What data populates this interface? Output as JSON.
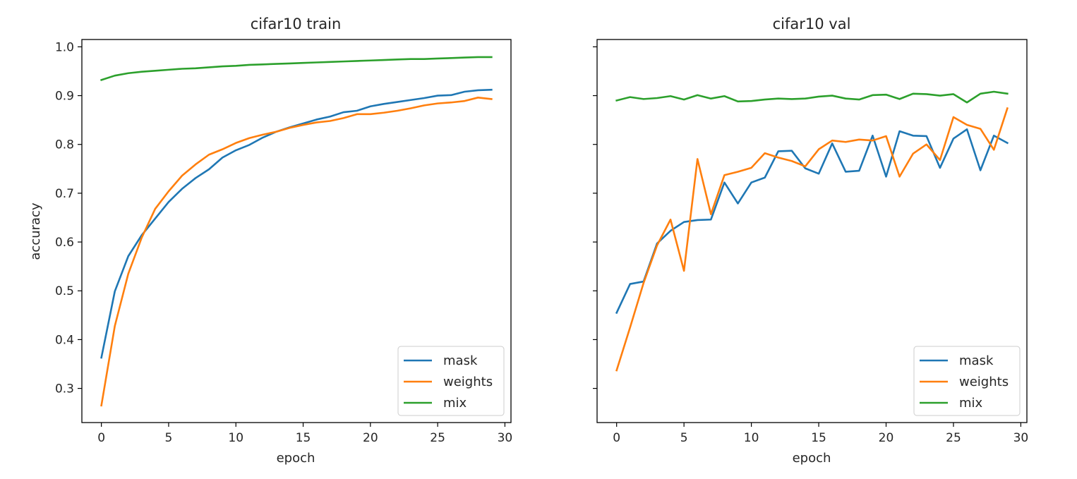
{
  "chart_data": [
    {
      "type": "line",
      "title": "cifar10 train",
      "xlabel": "epoch",
      "ylabel": "accuracy",
      "xlim": [
        -1.45,
        30.45
      ],
      "ylim": [
        0.23,
        1.015
      ],
      "xticks": [
        0,
        5,
        10,
        15,
        20,
        25,
        30
      ],
      "yticks": [
        0.3,
        0.4,
        0.5,
        0.6,
        0.7,
        0.8,
        0.9,
        1.0
      ],
      "ytick_labels": [
        "0.3",
        "0.4",
        "0.5",
        "0.6",
        "0.7",
        "0.8",
        "0.9",
        "1.0"
      ],
      "show_ytick_labels": true,
      "grid": false,
      "legend_position": "lower-right",
      "x": [
        0,
        1,
        2,
        3,
        4,
        5,
        6,
        7,
        8,
        9,
        10,
        11,
        12,
        13,
        14,
        15,
        16,
        17,
        18,
        19,
        20,
        21,
        22,
        23,
        24,
        25,
        26,
        27,
        28,
        29
      ],
      "series": [
        {
          "name": "mask",
          "color": "#1f77b4",
          "values": [
            0.363,
            0.499,
            0.571,
            0.614,
            0.648,
            0.682,
            0.709,
            0.731,
            0.749,
            0.773,
            0.788,
            0.799,
            0.814,
            0.826,
            0.835,
            0.843,
            0.851,
            0.857,
            0.866,
            0.869,
            0.878,
            0.883,
            0.887,
            0.891,
            0.895,
            0.9,
            0.901,
            0.908,
            0.911,
            0.912
          ]
        },
        {
          "name": "weights",
          "color": "#ff7f0e",
          "values": [
            0.265,
            0.428,
            0.535,
            0.609,
            0.668,
            0.704,
            0.736,
            0.759,
            0.779,
            0.79,
            0.803,
            0.813,
            0.82,
            0.826,
            0.834,
            0.84,
            0.845,
            0.848,
            0.854,
            0.862,
            0.862,
            0.865,
            0.869,
            0.874,
            0.88,
            0.884,
            0.886,
            0.889,
            0.896,
            0.893
          ]
        },
        {
          "name": "mix",
          "color": "#2ca02c",
          "values": [
            0.932,
            0.941,
            0.946,
            0.949,
            0.951,
            0.953,
            0.955,
            0.956,
            0.958,
            0.96,
            0.961,
            0.963,
            0.964,
            0.965,
            0.966,
            0.967,
            0.968,
            0.969,
            0.97,
            0.971,
            0.972,
            0.973,
            0.974,
            0.975,
            0.975,
            0.976,
            0.977,
            0.978,
            0.979,
            0.979
          ]
        }
      ]
    },
    {
      "type": "line",
      "title": "cifar10 val",
      "xlabel": "epoch",
      "ylabel": "",
      "xlim": [
        -1.45,
        30.45
      ],
      "ylim": [
        0.23,
        1.015
      ],
      "xticks": [
        0,
        5,
        10,
        15,
        20,
        25,
        30
      ],
      "yticks": [
        0.3,
        0.4,
        0.5,
        0.6,
        0.7,
        0.8,
        0.9,
        1.0
      ],
      "ytick_labels": [],
      "show_ytick_labels": false,
      "grid": false,
      "legend_position": "lower-right",
      "x": [
        0,
        1,
        2,
        3,
        4,
        5,
        6,
        7,
        8,
        9,
        10,
        11,
        12,
        13,
        14,
        15,
        16,
        17,
        18,
        19,
        20,
        21,
        22,
        23,
        24,
        25,
        26,
        27,
        28,
        29
      ],
      "series": [
        {
          "name": "mask",
          "color": "#1f77b4",
          "values": [
            0.455,
            0.514,
            0.519,
            0.597,
            0.623,
            0.641,
            0.645,
            0.646,
            0.722,
            0.679,
            0.722,
            0.732,
            0.786,
            0.787,
            0.751,
            0.74,
            0.802,
            0.744,
            0.746,
            0.818,
            0.734,
            0.827,
            0.818,
            0.817,
            0.752,
            0.812,
            0.831,
            0.747,
            0.818,
            0.803
          ]
        },
        {
          "name": "weights",
          "color": "#ff7f0e",
          "values": [
            0.337,
            0.425,
            0.516,
            0.593,
            0.646,
            0.541,
            0.77,
            0.657,
            0.737,
            0.744,
            0.752,
            0.782,
            0.773,
            0.766,
            0.755,
            0.79,
            0.808,
            0.805,
            0.81,
            0.808,
            0.817,
            0.734,
            0.781,
            0.8,
            0.768,
            0.856,
            0.84,
            0.832,
            0.789,
            0.874
          ]
        },
        {
          "name": "mix",
          "color": "#2ca02c",
          "values": [
            0.89,
            0.897,
            0.893,
            0.895,
            0.899,
            0.892,
            0.901,
            0.894,
            0.899,
            0.888,
            0.889,
            0.892,
            0.894,
            0.893,
            0.894,
            0.898,
            0.9,
            0.894,
            0.892,
            0.901,
            0.902,
            0.893,
            0.904,
            0.903,
            0.9,
            0.903,
            0.886,
            0.904,
            0.908,
            0.904
          ]
        }
      ]
    }
  ]
}
